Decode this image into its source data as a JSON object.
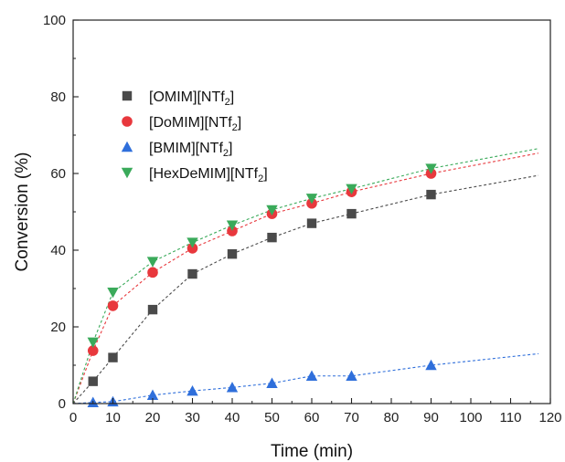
{
  "chart_data": {
    "type": "scatter",
    "xlabel": "Time (min)",
    "ylabel": "Conversion (%)",
    "xlim": [
      0,
      120
    ],
    "ylim": [
      0,
      100
    ],
    "xticks": [
      0,
      10,
      20,
      30,
      40,
      50,
      60,
      70,
      80,
      90,
      100,
      110,
      120
    ],
    "yticks": [
      0,
      20,
      40,
      60,
      80,
      100
    ],
    "grid": false,
    "legend_position": "upper-left",
    "fit_lines": "dashed",
    "x": [
      5,
      10,
      20,
      30,
      40,
      50,
      60,
      70,
      90
    ],
    "series": [
      {
        "name": "[OMIM][NTf2]",
        "name_main": "[OMIM][NTf",
        "name_sub": "2",
        "name_end": "]",
        "marker": "square",
        "color": "#4a4a4a",
        "values": [
          5.8,
          12.0,
          24.5,
          33.8,
          39.0,
          43.3,
          47.0,
          49.5,
          54.5
        ],
        "fit_end": [
          117,
          59.5
        ]
      },
      {
        "name": "[DoMIM][NTf2]",
        "name_main": "[DoMIM][NTf",
        "name_sub": "2",
        "name_end": "]",
        "marker": "circle",
        "color": "#e8383d",
        "values": [
          13.8,
          25.5,
          34.2,
          40.5,
          45.0,
          49.5,
          52.2,
          55.2,
          60.0
        ],
        "fit_end": [
          117,
          65.3
        ]
      },
      {
        "name": "[BMIM][NTf2]",
        "name_main": "[BMIM][NTf",
        "name_sub": "2",
        "name_end": "]",
        "marker": "triangle-up",
        "color": "#2f6fdb",
        "values": [
          0.3,
          0.5,
          2.2,
          3.3,
          4.2,
          5.3,
          7.2,
          7.2,
          10.0
        ],
        "fit_end": [
          117,
          13.0
        ]
      },
      {
        "name": "[HexDeMIM][NTf2]",
        "name_main": "[HexDeMIM][NTf",
        "name_sub": "2",
        "name_end": "]",
        "marker": "triangle-down",
        "color": "#3aaa5a",
        "values": [
          16.0,
          29.0,
          37.0,
          42.0,
          46.5,
          50.5,
          53.5,
          56.0,
          61.3
        ],
        "fit_end": [
          117,
          66.5
        ]
      }
    ]
  }
}
